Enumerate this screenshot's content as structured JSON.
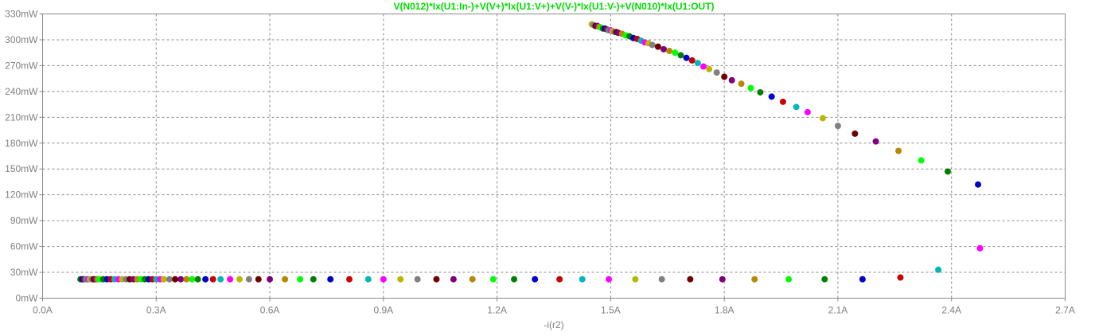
{
  "chart_data": {
    "type": "scatter",
    "title": "V(N012)*Ix(U1:In-)+V(V+)*Ix(U1:V+)+V(V-)*Ix(U1:V-)+V(N010)*Ix(U1:OUT)",
    "xlabel": "-i(r2)",
    "ylabel": "",
    "xlim": [
      0,
      2.7
    ],
    "ylim": [
      0,
      330
    ],
    "x_ticks": [
      "0.0A",
      "0.3A",
      "0.6A",
      "0.9A",
      "1.2A",
      "1.5A",
      "1.8A",
      "2.1A",
      "2.4A",
      "2.7A"
    ],
    "x_tick_values": [
      0,
      0.3,
      0.6,
      0.9,
      1.2,
      1.5,
      1.8,
      2.1,
      2.4,
      2.7
    ],
    "y_ticks": [
      "0mW",
      "30mW",
      "60mW",
      "90mW",
      "120mW",
      "150mW",
      "180mW",
      "210mW",
      "240mW",
      "270mW",
      "300mW",
      "330mW"
    ],
    "y_tick_values": [
      0,
      30,
      60,
      90,
      120,
      150,
      180,
      210,
      240,
      270,
      300,
      330
    ],
    "grid": true,
    "point_colors": [
      "#008000",
      "#0000cc",
      "#cc0000",
      "#00b8b8",
      "#ff00ff",
      "#b8b800",
      "#808080",
      "#700000",
      "#800080",
      "#b88800",
      "#00ff00"
    ],
    "series": [
      {
        "values_note": "",
        "points": [
          [
            0.1,
            22
          ],
          [
            0.105,
            22
          ],
          [
            0.11,
            22
          ],
          [
            0.115,
            22
          ],
          [
            0.12,
            22
          ],
          [
            0.125,
            22
          ],
          [
            0.13,
            22
          ],
          [
            0.135,
            22
          ],
          [
            0.14,
            22
          ],
          [
            0.145,
            22
          ],
          [
            0.15,
            22
          ],
          [
            0.16,
            22
          ],
          [
            0.17,
            22
          ],
          [
            0.18,
            22
          ],
          [
            0.19,
            22
          ],
          [
            0.2,
            22
          ],
          [
            0.21,
            22
          ],
          [
            0.22,
            22
          ],
          [
            0.23,
            22
          ],
          [
            0.24,
            22
          ],
          [
            0.25,
            22
          ],
          [
            0.26,
            22
          ],
          [
            0.27,
            22
          ],
          [
            0.28,
            22
          ],
          [
            0.29,
            22
          ],
          [
            0.3,
            22
          ],
          [
            0.31,
            22
          ],
          [
            0.32,
            22
          ],
          [
            0.335,
            22
          ],
          [
            0.35,
            22
          ],
          [
            0.365,
            22
          ],
          [
            0.38,
            22
          ],
          [
            0.395,
            22
          ],
          [
            0.41,
            22
          ],
          [
            0.43,
            22
          ],
          [
            0.45,
            22
          ],
          [
            0.47,
            22
          ],
          [
            0.495,
            22
          ],
          [
            0.52,
            22
          ],
          [
            0.545,
            22
          ],
          [
            0.57,
            22
          ],
          [
            0.6,
            22
          ],
          [
            0.64,
            22
          ],
          [
            0.68,
            22
          ],
          [
            0.715,
            22
          ],
          [
            0.76,
            22
          ],
          [
            0.81,
            22
          ],
          [
            0.86,
            22
          ],
          [
            0.9,
            22
          ],
          [
            0.945,
            22
          ],
          [
            0.99,
            22
          ],
          [
            1.04,
            22
          ],
          [
            1.085,
            22
          ],
          [
            1.135,
            22
          ],
          [
            1.19,
            22
          ],
          [
            1.245,
            22
          ],
          [
            1.3,
            22
          ],
          [
            1.365,
            22
          ],
          [
            1.425,
            22
          ],
          [
            1.495,
            22
          ],
          [
            1.565,
            22
          ],
          [
            1.635,
            22
          ],
          [
            1.71,
            22
          ],
          [
            1.795,
            22
          ],
          [
            1.88,
            22
          ],
          [
            1.97,
            22
          ],
          [
            2.065,
            22
          ],
          [
            2.165,
            22
          ],
          [
            2.265,
            24
          ],
          [
            2.365,
            33
          ],
          [
            2.475,
            58
          ],
          [
            1.45,
            318
          ],
          [
            1.455,
            317
          ],
          [
            1.46,
            316
          ],
          [
            1.465,
            316
          ],
          [
            1.47,
            315
          ],
          [
            1.475,
            314
          ],
          [
            1.48,
            313
          ],
          [
            1.485,
            313
          ],
          [
            1.49,
            312
          ],
          [
            1.495,
            311
          ],
          [
            1.5,
            311
          ],
          [
            1.505,
            310
          ],
          [
            1.51,
            309
          ],
          [
            1.515,
            309
          ],
          [
            1.52,
            308
          ],
          [
            1.53,
            307
          ],
          [
            1.54,
            305
          ],
          [
            1.55,
            304
          ],
          [
            1.56,
            302
          ],
          [
            1.57,
            301
          ],
          [
            1.58,
            299
          ],
          [
            1.59,
            297
          ],
          [
            1.6,
            296
          ],
          [
            1.61,
            294
          ],
          [
            1.625,
            292
          ],
          [
            1.64,
            289
          ],
          [
            1.655,
            287
          ],
          [
            1.67,
            285
          ],
          [
            1.685,
            282
          ],
          [
            1.7,
            279
          ],
          [
            1.715,
            276
          ],
          [
            1.73,
            273
          ],
          [
            1.745,
            269
          ],
          [
            1.76,
            266
          ],
          [
            1.78,
            262
          ],
          [
            1.8,
            257
          ],
          [
            1.82,
            253
          ],
          [
            1.845,
            249
          ],
          [
            1.87,
            244
          ],
          [
            1.895,
            239
          ],
          [
            1.925,
            234
          ],
          [
            1.955,
            228
          ],
          [
            1.99,
            222
          ],
          [
            2.02,
            216
          ],
          [
            2.06,
            209
          ],
          [
            2.1,
            200
          ],
          [
            2.145,
            191
          ],
          [
            2.2,
            182
          ],
          [
            2.26,
            171
          ],
          [
            2.32,
            160
          ],
          [
            2.39,
            147
          ],
          [
            2.47,
            132
          ]
        ]
      }
    ]
  }
}
